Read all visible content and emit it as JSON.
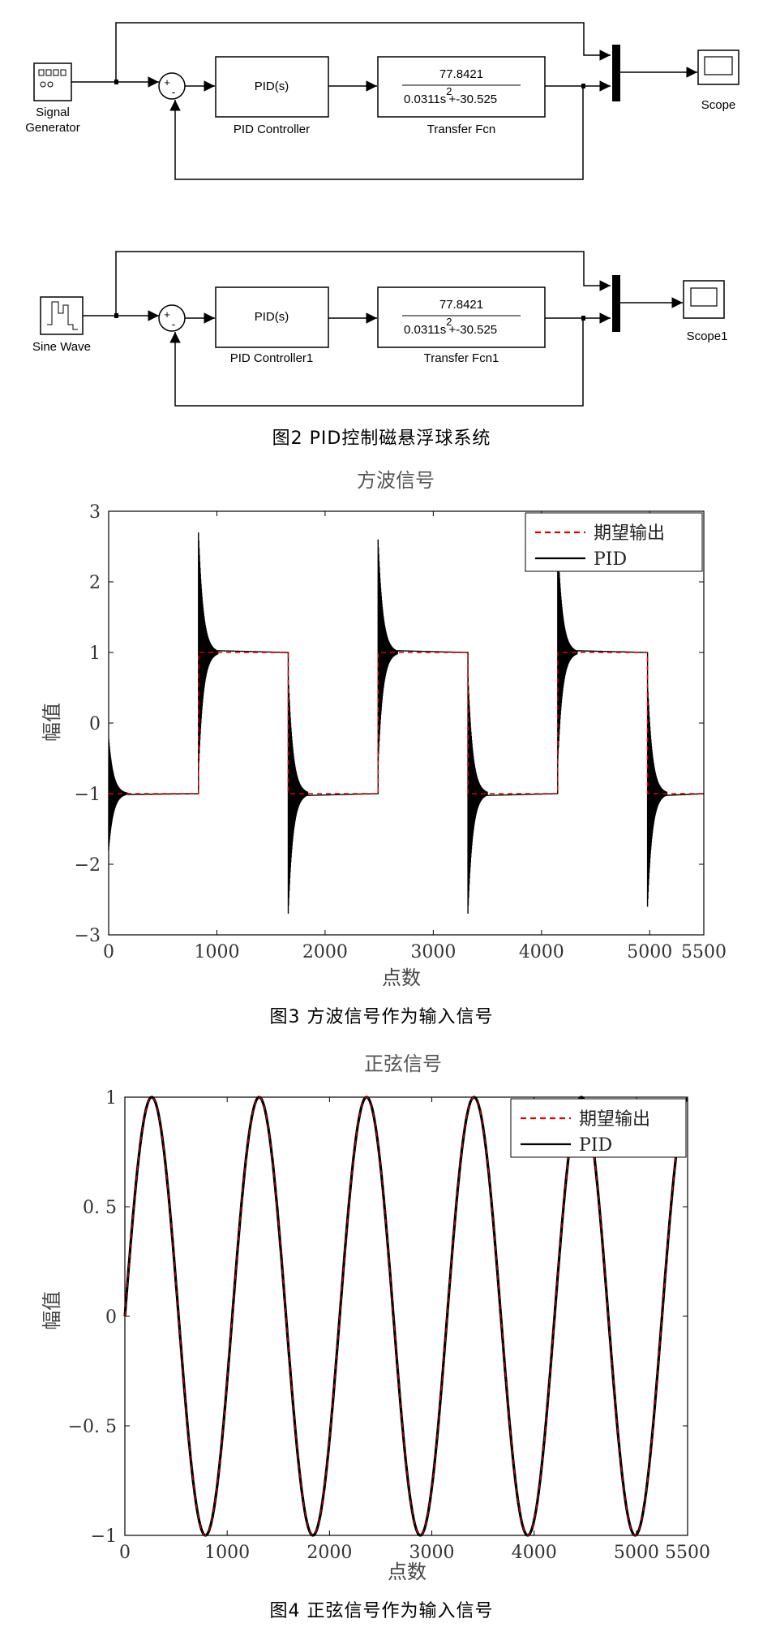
{
  "diagram": {
    "caption": "图2 PID控制磁悬浮球系统",
    "row1": {
      "source_label_line1": "Signal",
      "source_label_line2": "Generator",
      "controller_text": "PID(s)",
      "controller_label": "PID Controller",
      "tf_numerator": "77.8421",
      "tf_denominator": "0.0311s",
      "tf_denominator_exp": "2",
      "tf_denominator_tail": "+-30.525",
      "tf_label": "Transfer Fcn",
      "scope_label": "Scope",
      "sum_plus": "+",
      "sum_minus": "-"
    },
    "row2": {
      "source_label": "Sine Wave",
      "controller_text": "PID(s)",
      "controller_label": "PID Controller1",
      "tf_numerator": "77.8421",
      "tf_denominator": "0.0311s",
      "tf_denominator_exp": "2",
      "tf_denominator_tail": "+-30.525",
      "tf_label": "Transfer Fcn1",
      "scope_label": "Scope1",
      "sum_plus": "+",
      "sum_minus": "-"
    }
  },
  "fig3": {
    "caption": "图3 方波信号作为输入信号",
    "chart_data": {
      "type": "line",
      "title": "方波信号",
      "xlabel": "点数",
      "ylabel": "幅值",
      "xlim": [
        0,
        5500
      ],
      "ylim": [
        -3,
        3
      ],
      "xticks": [
        0,
        1000,
        2000,
        3000,
        4000,
        5000,
        5500
      ],
      "xtick_labels": [
        "0",
        "1000",
        "2000",
        "3000",
        "4000",
        "5000",
        "5500"
      ],
      "yticks": [
        -3,
        -2,
        -1,
        0,
        1,
        2,
        3
      ],
      "ytick_labels": [
        "−3",
        "−2",
        "−1",
        "0",
        "1",
        "2",
        "3"
      ],
      "legend_position": "top-right",
      "series": [
        {
          "name": "期望输出",
          "style": "dashed",
          "color": "#e00000",
          "x": [
            0,
            830,
            830,
            1660,
            1660,
            2490,
            2490,
            3320,
            3320,
            4150,
            4150,
            4980,
            4980,
            5500
          ],
          "y": [
            -1,
            -1,
            1,
            1,
            -1,
            -1,
            1,
            1,
            -1,
            -1,
            1,
            1,
            -1,
            -1
          ]
        },
        {
          "name": "PID",
          "style": "solid",
          "color": "#000000",
          "switch_points": [
            0,
            830,
            1660,
            2490,
            3320,
            4150,
            4980
          ],
          "levels": [
            -1,
            1,
            -1,
            1,
            -1,
            1,
            -1
          ],
          "overshoot_peaks": [
            -1.8,
            2.7,
            -2.7,
            2.6,
            -2.7,
            2.6,
            -2.6
          ],
          "settle_points": 180
        }
      ]
    }
  },
  "fig4": {
    "caption": "图4 正弦信号作为输入信号",
    "chart_data": {
      "type": "line",
      "title": "正弦信号",
      "xlabel": "点数",
      "ylabel": "幅值",
      "xlim": [
        0,
        5500
      ],
      "ylim": [
        -1,
        1
      ],
      "xticks": [
        0,
        1000,
        2000,
        3000,
        4000,
        5000,
        5500
      ],
      "xtick_labels": [
        "0",
        "1000",
        "2000",
        "3000",
        "4000",
        "5000",
        "5500"
      ],
      "yticks": [
        -1,
        -0.5,
        0,
        0.5,
        1
      ],
      "ytick_labels": [
        "−1",
        "−0. 5",
        "0",
        "0. 5",
        "1"
      ],
      "legend_position": "top-right",
      "period": 1050,
      "amplitude": 1,
      "series": [
        {
          "name": "期望输出",
          "style": "dashed",
          "color": "#e00000"
        },
        {
          "name": "PID",
          "style": "solid",
          "color": "#000000"
        }
      ]
    }
  }
}
